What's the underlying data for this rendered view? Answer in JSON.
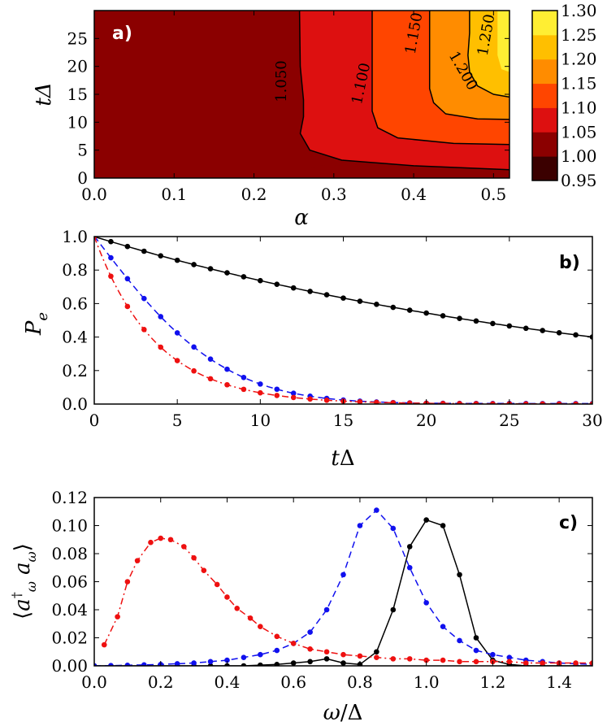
{
  "chart_data": [
    {
      "type": "heatmap",
      "panel_label": "a)",
      "xlabel": "α",
      "ylabel": "tΔ",
      "xlim": [
        0.0,
        0.52
      ],
      "ylim": [
        0,
        30
      ],
      "x_ticks": [
        "0.0",
        "0.1",
        "0.2",
        "0.3",
        "0.4",
        "0.5"
      ],
      "y_ticks": [
        "0",
        "5",
        "10",
        "15",
        "20",
        "25"
      ],
      "x_tick_values": [
        0.0,
        0.1,
        0.2,
        0.3,
        0.4,
        0.5
      ],
      "y_tick_values": [
        0,
        5,
        10,
        15,
        20,
        25
      ],
      "colorbar": {
        "levels": [
          0.95,
          1.0,
          1.05,
          1.1,
          1.15,
          1.2,
          1.25,
          1.3
        ],
        "tick_labels": [
          "0.95",
          "1.00",
          "1.05",
          "1.10",
          "1.15",
          "1.20",
          "1.25",
          "1.30"
        ],
        "colors": [
          "#3b0000",
          "#8b0000",
          "#dd1010",
          "#ff4500",
          "#ff8c00",
          "#ffbf00",
          "#ffee33",
          "#ffffb0"
        ]
      },
      "contour_labels": [
        "1.050",
        "1.100",
        "1.150",
        "1.200",
        "1.250"
      ],
      "contours": [
        {
          "level": 1.05,
          "points": [
            [
              0.52,
              1.5
            ],
            [
              0.4,
              2.2
            ],
            [
              0.31,
              3.2
            ],
            [
              0.27,
              5
            ],
            [
              0.258,
              8
            ],
            [
              0.262,
              11
            ],
            [
              0.262,
              14
            ],
            [
              0.258,
              20
            ],
            [
              0.257,
              30
            ]
          ]
        },
        {
          "level": 1.1,
          "points": [
            [
              0.52,
              6
            ],
            [
              0.45,
              6.2
            ],
            [
              0.38,
              7.2
            ],
            [
              0.355,
              9
            ],
            [
              0.348,
              12
            ],
            [
              0.348,
              17
            ],
            [
              0.348,
              22
            ],
            [
              0.348,
              30
            ]
          ]
        },
        {
          "level": 1.15,
          "points": [
            [
              0.52,
              10.5
            ],
            [
              0.48,
              10.6
            ],
            [
              0.44,
              11.5
            ],
            [
              0.425,
              13.5
            ],
            [
              0.42,
              16
            ],
            [
              0.42,
              22
            ],
            [
              0.42,
              30
            ]
          ]
        },
        {
          "level": 1.2,
          "points": [
            [
              0.52,
              14.5
            ],
            [
              0.5,
              15
            ],
            [
              0.48,
              16.5
            ],
            [
              0.47,
              19
            ],
            [
              0.468,
              22
            ],
            [
              0.47,
              26
            ],
            [
              0.47,
              30
            ]
          ]
        }
      ]
    },
    {
      "type": "line",
      "panel_label": "b)",
      "xlabel": "tΔ",
      "ylabel": "P_e",
      "xlim": [
        0,
        30
      ],
      "ylim": [
        0.0,
        1.0
      ],
      "x_ticks": [
        "0",
        "5",
        "10",
        "15",
        "20",
        "25",
        "30"
      ],
      "y_ticks": [
        "0.0",
        "0.2",
        "0.4",
        "0.6",
        "0.8",
        "1.0"
      ],
      "x_tick_values": [
        0,
        5,
        10,
        15,
        20,
        25,
        30
      ],
      "y_tick_values": [
        0.0,
        0.2,
        0.4,
        0.6,
        0.8,
        1.0
      ],
      "series": [
        {
          "color": "#000000",
          "style": "solid",
          "decay": "exp",
          "rate": 0.0305,
          "x_start": 0,
          "x_end": 30,
          "marker_step": 1
        },
        {
          "color": "#1010ee",
          "style": "dashed",
          "decay": "gauss-exp",
          "x_start": 0,
          "x_end": 30,
          "marker_step": 1
        },
        {
          "color": "#ee1010",
          "style": "dashdot",
          "decay": "exp",
          "rate": 0.27,
          "x_start": 0,
          "x_end": 30,
          "marker_step": 1
        }
      ]
    },
    {
      "type": "line",
      "panel_label": "c)",
      "xlabel": "ω/Δ",
      "ylabel": "⟨a_ω† a_ω⟩",
      "xlim": [
        0.0,
        1.5
      ],
      "ylim": [
        0.0,
        0.12
      ],
      "x_ticks": [
        "0.0",
        "0.2",
        "0.4",
        "0.6",
        "0.8",
        "1.0",
        "1.2",
        "1.4"
      ],
      "y_ticks": [
        "0.00",
        "0.02",
        "0.04",
        "0.06",
        "0.08",
        "0.10",
        "0.12"
      ],
      "x_tick_values": [
        0.0,
        0.2,
        0.4,
        0.6,
        0.8,
        1.0,
        1.2,
        1.4
      ],
      "y_tick_values": [
        0.0,
        0.02,
        0.04,
        0.06,
        0.08,
        0.1,
        0.12
      ],
      "series": [
        {
          "color": "#000000",
          "style": "solid",
          "x": [
            0.0,
            0.05,
            0.1,
            0.15,
            0.2,
            0.25,
            0.3,
            0.35,
            0.4,
            0.45,
            0.5,
            0.55,
            0.6,
            0.65,
            0.7,
            0.75,
            0.8,
            0.85,
            0.9,
            0.95,
            1.0,
            1.05,
            1.1,
            1.15,
            1.2,
            1.25,
            1.3,
            1.35,
            1.4,
            1.45,
            1.5
          ],
          "y": [
            0.0,
            0.0,
            0.0,
            0.0,
            0.0,
            0.0,
            0.0,
            0.0,
            0.0,
            0.0,
            0.0005,
            0.001,
            0.002,
            0.003,
            0.005,
            0.002,
            0.001,
            0.01,
            0.04,
            0.085,
            0.104,
            0.1,
            0.065,
            0.02,
            0.004,
            0.001,
            0.0,
            0.0,
            0.0,
            0.0,
            0.0
          ]
        },
        {
          "color": "#1010ee",
          "style": "dashed",
          "x": [
            0.0,
            0.05,
            0.1,
            0.15,
            0.2,
            0.25,
            0.3,
            0.35,
            0.4,
            0.45,
            0.5,
            0.55,
            0.6,
            0.65,
            0.7,
            0.75,
            0.8,
            0.85,
            0.9,
            0.95,
            1.0,
            1.05,
            1.1,
            1.15,
            1.2,
            1.25,
            1.3,
            1.35,
            1.4,
            1.45,
            1.5
          ],
          "y": [
            0.0,
            0.0002,
            0.0004,
            0.0007,
            0.001,
            0.0015,
            0.002,
            0.003,
            0.004,
            0.006,
            0.008,
            0.011,
            0.016,
            0.024,
            0.04,
            0.065,
            0.1,
            0.111,
            0.098,
            0.07,
            0.045,
            0.028,
            0.018,
            0.011,
            0.008,
            0.006,
            0.004,
            0.003,
            0.002,
            0.0015,
            0.001
          ]
        },
        {
          "color": "#ee1010",
          "style": "dashdot",
          "x": [
            0.03,
            0.07,
            0.1,
            0.13,
            0.17,
            0.2,
            0.23,
            0.27,
            0.3,
            0.33,
            0.37,
            0.4,
            0.43,
            0.47,
            0.5,
            0.55,
            0.6,
            0.65,
            0.7,
            0.75,
            0.8,
            0.85,
            0.9,
            0.95,
            1.0,
            1.05,
            1.1,
            1.15,
            1.2,
            1.25,
            1.3,
            1.35,
            1.4,
            1.45,
            1.5
          ],
          "y": [
            0.015,
            0.035,
            0.06,
            0.075,
            0.088,
            0.091,
            0.09,
            0.085,
            0.077,
            0.068,
            0.058,
            0.049,
            0.041,
            0.034,
            0.028,
            0.021,
            0.016,
            0.012,
            0.01,
            0.008,
            0.007,
            0.006,
            0.005,
            0.005,
            0.004,
            0.004,
            0.003,
            0.003,
            0.003,
            0.003,
            0.002,
            0.002,
            0.002,
            0.002,
            0.002
          ]
        }
      ]
    }
  ]
}
